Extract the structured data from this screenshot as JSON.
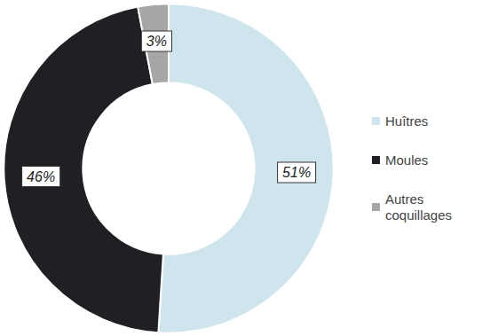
{
  "chart_data": {
    "type": "pie",
    "categories": [
      "Huîtres",
      "Moules",
      "Autres coquillages"
    ],
    "values": [
      51,
      46,
      3
    ],
    "value_labels": [
      "51%",
      "46%",
      "3%"
    ],
    "colors": [
      "#cfe5ee",
      "#1f1f24",
      "#a6a6a6"
    ],
    "legend": "right",
    "data_labels": true
  }
}
